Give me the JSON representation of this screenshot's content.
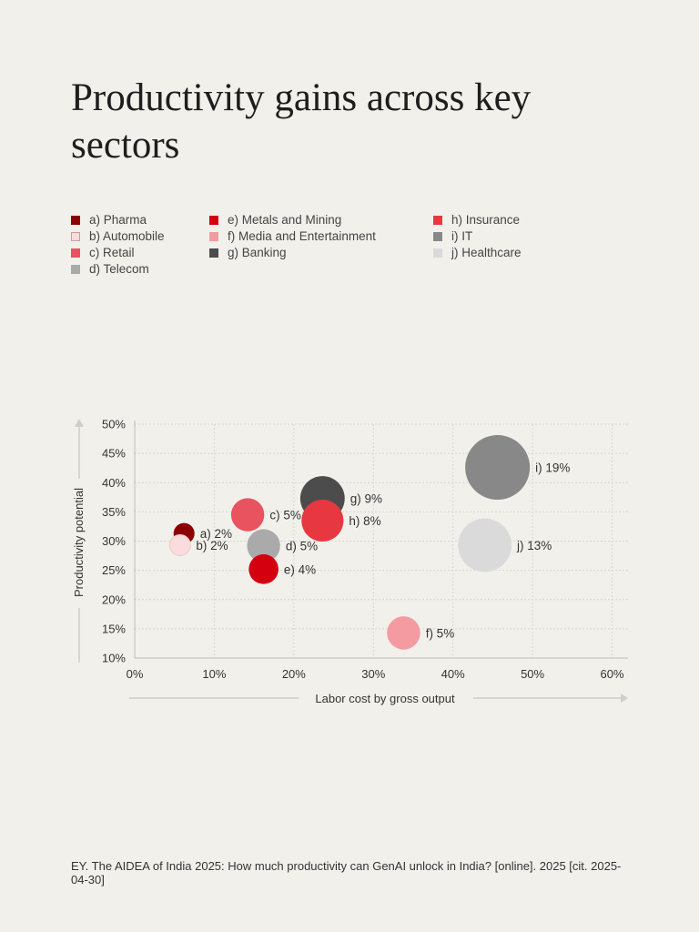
{
  "title": "Productivity gains across key sectors",
  "source": "EY. The AIDEA of India 2025: How much productivity can GenAI unlock in India? [online]. 2025 [cit. 2025-04-30]",
  "chart_data": {
    "type": "scatter",
    "subtype": "bubble",
    "xlabel": "Labor cost by gross output",
    "ylabel": "Productivity potential",
    "xlim": [
      0,
      62
    ],
    "ylim": [
      10,
      50
    ],
    "xticks": [
      "0%",
      "10%",
      "20%",
      "30%",
      "40%",
      "50%",
      "60%"
    ],
    "xtick_values": [
      0,
      10,
      20,
      30,
      40,
      50,
      60
    ],
    "yticks": [
      "10%",
      "15%",
      "20%",
      "25%",
      "30%",
      "35%",
      "40%",
      "45%",
      "50%"
    ],
    "ytick_values": [
      10,
      15,
      20,
      25,
      30,
      35,
      40,
      45,
      50
    ],
    "grid": true,
    "points": [
      {
        "legend": "a) Pharma",
        "label": "a) 2%",
        "x": 6.2,
        "y": 31.3,
        "size": 2,
        "color": "#8b0000"
      },
      {
        "legend": "b) Automobile",
        "label": "b) 2%",
        "x": 5.7,
        "y": 29.3,
        "size": 2,
        "color": "#fadcdc",
        "border": "#b9a3a3"
      },
      {
        "legend": "c) Retail",
        "label": "c) 5%",
        "x": 14.2,
        "y": 34.5,
        "size": 5,
        "color": "#e9525f"
      },
      {
        "legend": "d) Telecom",
        "label": "d) 5%",
        "x": 16.2,
        "y": 29.2,
        "size": 5,
        "color": "#aaaaaa"
      },
      {
        "legend": "e) Metals and Mining",
        "label": "e) 4%",
        "x": 16.2,
        "y": 25.2,
        "size": 4,
        "color": "#d4000f"
      },
      {
        "legend": "f) Media and Entertainment",
        "label": "f) 5%",
        "x": 33.8,
        "y": 14.3,
        "size": 5,
        "color": "#f39ba0"
      },
      {
        "legend": "g) Banking",
        "label": "g) 9%",
        "x": 23.6,
        "y": 37.3,
        "size": 9,
        "color": "#4c4c4c"
      },
      {
        "legend": "h) Insurance",
        "label": "h) 8%",
        "x": 23.6,
        "y": 33.5,
        "size": 8,
        "color": "#e73842"
      },
      {
        "legend": "i) IT",
        "label": "i) 19%",
        "x": 45.6,
        "y": 42.6,
        "size": 19,
        "color": "#888888"
      },
      {
        "legend": "j) Healthcare",
        "label": "j) 13%",
        "x": 44.0,
        "y": 29.3,
        "size": 13,
        "color": "#dadada"
      }
    ]
  }
}
